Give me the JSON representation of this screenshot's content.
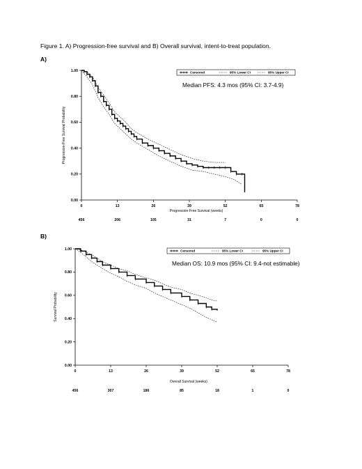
{
  "caption": "Figure 1. A) Progression-free survival and B) Overall survival, intent-to-treat population.",
  "chart_data": [
    {
      "panel": "A)",
      "type": "line",
      "ylabel": "Progression-Free Survival Probability",
      "xlabel": "Progression-Free Survival (weeks)",
      "ylim": [
        0,
        1
      ],
      "xlim": [
        0,
        78
      ],
      "y_ticks": [
        "0.00",
        "0.20",
        "0.40",
        "0.60",
        "0.80",
        "1.00"
      ],
      "x_ticks": [
        "0",
        "13",
        "26",
        "39",
        "52",
        "65",
        "78"
      ],
      "at_risk": [
        "456",
        "206",
        "105",
        "31",
        "7",
        "0",
        "0"
      ],
      "legend": [
        "Censored",
        "95% Lower CI",
        "95% Upper CI"
      ],
      "annotation": "Median PFS: 4.3 mos (95% CI: 3.7-4.9)",
      "series": [
        {
          "name": "Censored",
          "style": "step-solid",
          "x": [
            0,
            1,
            2,
            3,
            4,
            5,
            6,
            7,
            8,
            9,
            10,
            11,
            12,
            13,
            14,
            15,
            16,
            17,
            18,
            19,
            20,
            22,
            24,
            26,
            28,
            30,
            32,
            34,
            36,
            38,
            40,
            42,
            44,
            46,
            48,
            50,
            52,
            54,
            56,
            58,
            59
          ],
          "y": [
            1.0,
            0.99,
            0.97,
            0.95,
            0.92,
            0.88,
            0.83,
            0.8,
            0.76,
            0.73,
            0.7,
            0.66,
            0.63,
            0.61,
            0.59,
            0.57,
            0.55,
            0.53,
            0.51,
            0.49,
            0.47,
            0.44,
            0.42,
            0.4,
            0.38,
            0.36,
            0.34,
            0.32,
            0.3,
            0.28,
            0.27,
            0.26,
            0.25,
            0.25,
            0.25,
            0.25,
            0.25,
            0.22,
            0.2,
            0.2,
            0.06
          ]
        },
        {
          "name": "95% Lower CI",
          "style": "dashed",
          "x": [
            0,
            2,
            4,
            6,
            8,
            10,
            12,
            14,
            16,
            18,
            20,
            24,
            28,
            32,
            36,
            40,
            44,
            48,
            52,
            55,
            58
          ],
          "y": [
            1.0,
            0.95,
            0.89,
            0.79,
            0.72,
            0.66,
            0.59,
            0.55,
            0.51,
            0.47,
            0.44,
            0.39,
            0.34,
            0.3,
            0.26,
            0.23,
            0.22,
            0.2,
            0.18,
            0.16,
            0.12
          ]
        },
        {
          "name": "95% Upper CI",
          "style": "dashed",
          "x": [
            0,
            2,
            4,
            6,
            8,
            10,
            12,
            14,
            16,
            18,
            20,
            24,
            28,
            32,
            36,
            40,
            44,
            48,
            52
          ],
          "y": [
            1.0,
            0.99,
            0.95,
            0.87,
            0.81,
            0.75,
            0.68,
            0.64,
            0.6,
            0.55,
            0.52,
            0.47,
            0.43,
            0.39,
            0.35,
            0.32,
            0.3,
            0.29,
            0.29
          ]
        }
      ]
    },
    {
      "panel": "B)",
      "type": "line",
      "ylabel": "Survival Probability",
      "xlabel": "Overall Survival (weeks)",
      "ylim": [
        0,
        1
      ],
      "xlim": [
        0,
        78
      ],
      "y_ticks": [
        "0.00",
        "0.20",
        "0.40",
        "0.60",
        "0.80",
        "1.00"
      ],
      "x_ticks": [
        "0",
        "13",
        "26",
        "39",
        "52",
        "65",
        "78"
      ],
      "at_risk": [
        "456",
        "307",
        "186",
        "85",
        "18",
        "1",
        "0"
      ],
      "legend": [
        "Censored",
        "95% Lower CI",
        "95% Upper CI"
      ],
      "annotation": "Median OS: 10.9 mos (95% CI: 9.4-not estimable)",
      "series": [
        {
          "name": "Censored",
          "style": "step-solid",
          "x": [
            0,
            2,
            4,
            6,
            8,
            10,
            13,
            16,
            19,
            22,
            26,
            29,
            32,
            35,
            39,
            42,
            45,
            48,
            50,
            52
          ],
          "y": [
            1.0,
            0.98,
            0.95,
            0.92,
            0.89,
            0.86,
            0.83,
            0.8,
            0.77,
            0.74,
            0.71,
            0.68,
            0.65,
            0.62,
            0.59,
            0.56,
            0.53,
            0.5,
            0.48,
            0.47
          ]
        },
        {
          "name": "95% Lower CI",
          "style": "dashed",
          "x": [
            0,
            2,
            4,
            6,
            8,
            10,
            13,
            16,
            19,
            22,
            26,
            29,
            32,
            35,
            39,
            42,
            45,
            48,
            50,
            52
          ],
          "y": [
            1.0,
            0.97,
            0.93,
            0.89,
            0.86,
            0.83,
            0.79,
            0.76,
            0.72,
            0.69,
            0.66,
            0.62,
            0.59,
            0.56,
            0.52,
            0.49,
            0.45,
            0.41,
            0.39,
            0.37
          ]
        },
        {
          "name": "95% Upper CI",
          "style": "dashed",
          "x": [
            0,
            2,
            4,
            6,
            8,
            10,
            13,
            16,
            19,
            22,
            26,
            29,
            32,
            35,
            39,
            42,
            45,
            48,
            50,
            52
          ],
          "y": [
            1.0,
            0.99,
            0.97,
            0.95,
            0.92,
            0.89,
            0.86,
            0.83,
            0.81,
            0.78,
            0.75,
            0.73,
            0.7,
            0.67,
            0.65,
            0.62,
            0.6,
            0.58,
            0.56,
            0.55
          ]
        }
      ]
    }
  ]
}
